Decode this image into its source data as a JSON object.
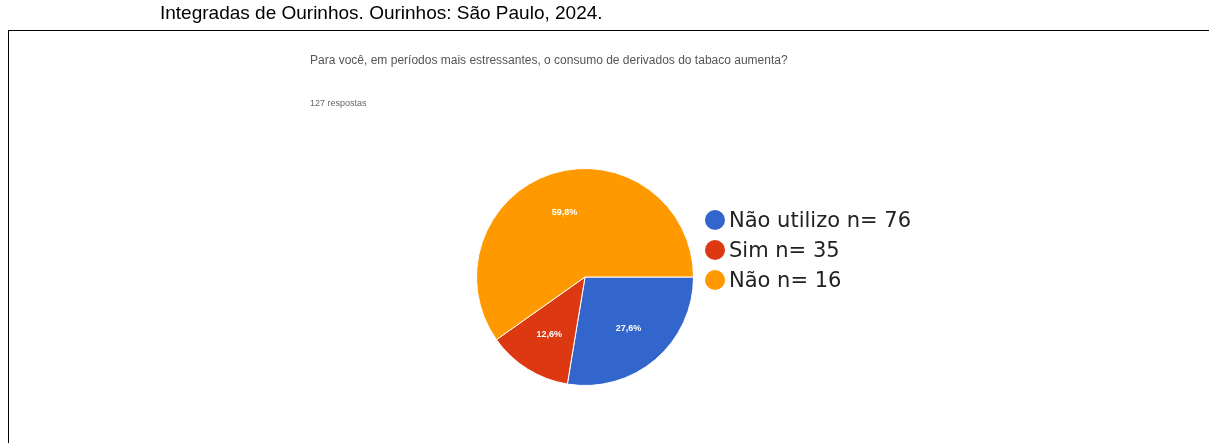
{
  "chart_data": {
    "type": "pie",
    "title": "Para você, em períodos mais estressantes, o consumo de derivados do tabaco aumenta?",
    "subtitle": "127 respostas",
    "annotations": [
      "Integradas de Ourinhos. Ourinhos: São Paulo, 2024."
    ],
    "categories": [
      "Não utilizo n= 76",
      "Sim n= 35",
      "Não n= 16"
    ],
    "values": [
      27.6,
      12.6,
      59.8
    ],
    "value_labels": [
      "27,6%",
      "12,6%",
      "59,8%"
    ],
    "colors": [
      "#3366cc",
      "#dc3912",
      "#ff9900"
    ],
    "legend": "right"
  }
}
